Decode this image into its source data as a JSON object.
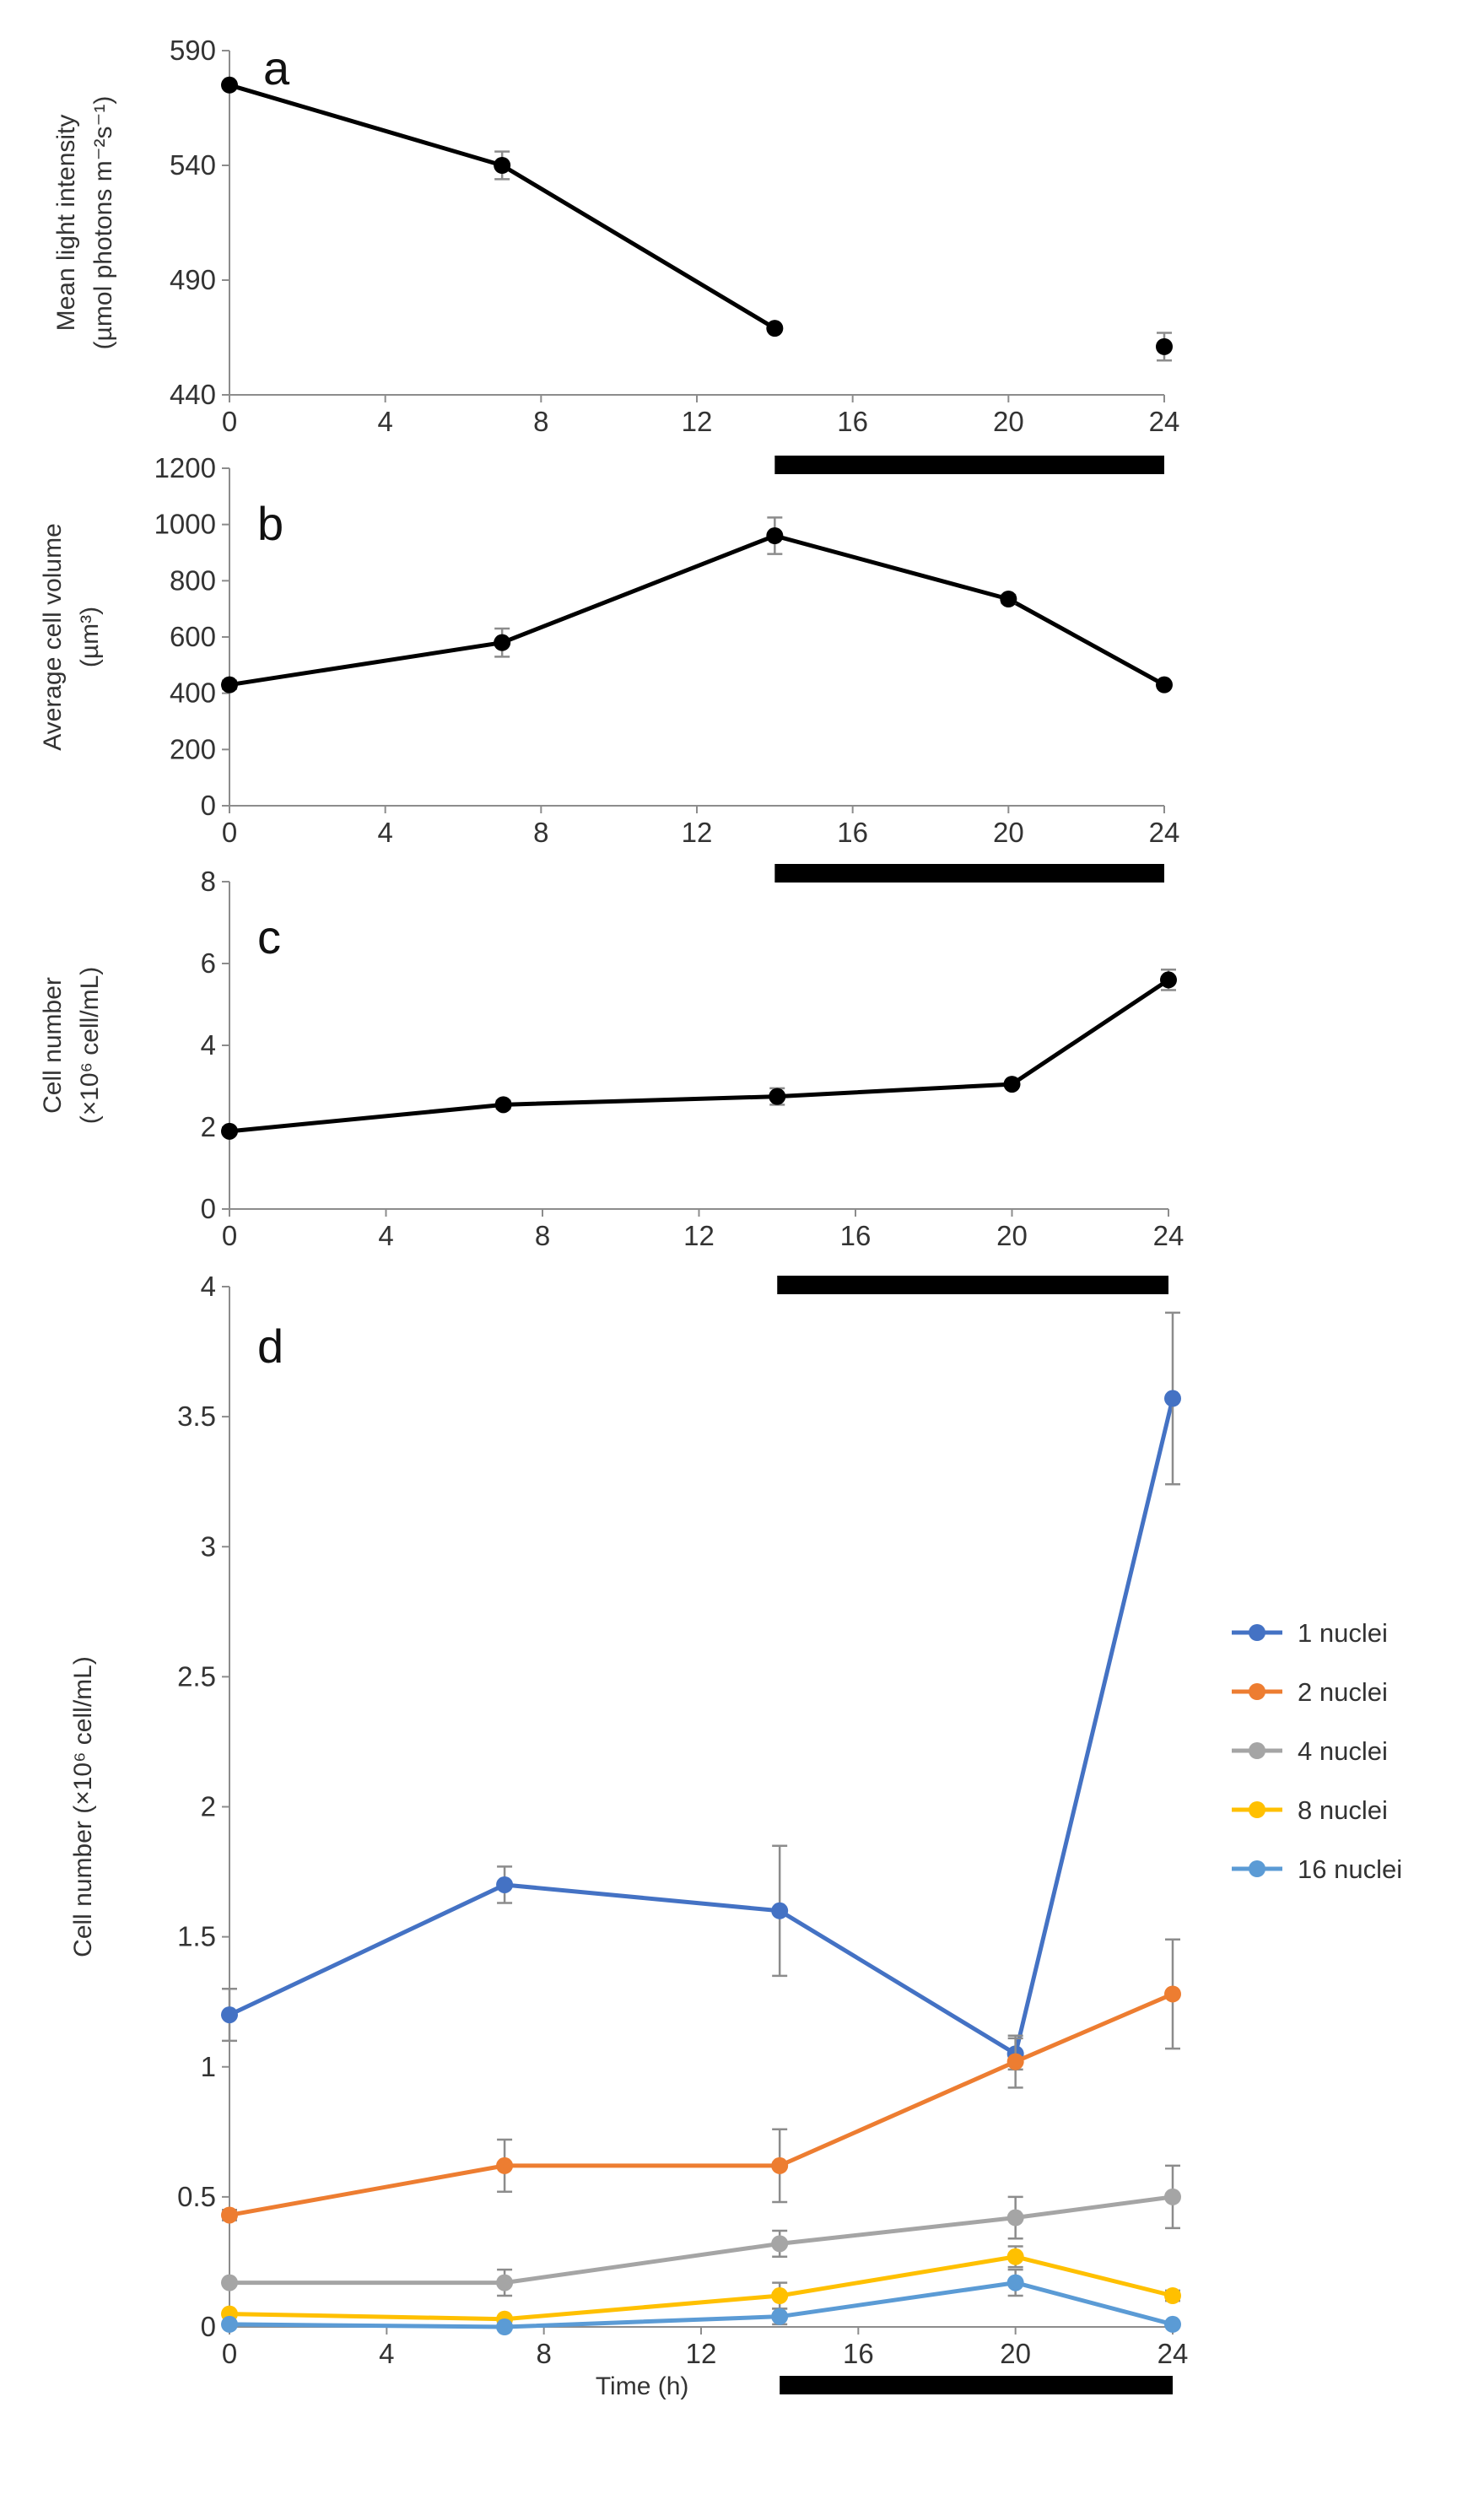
{
  "colors": {
    "black": "#000000",
    "axis": "#8c8c8c",
    "error_bar": "#8c8c8c",
    "s1": "#4472C4",
    "s2": "#ED7D31",
    "s4": "#A5A5A5",
    "s8": "#FFC000",
    "s16": "#5B9BD5"
  },
  "chart_data": [
    {
      "panel": "a",
      "type": "line",
      "x": [
        0,
        7,
        14,
        24
      ],
      "values": [
        575,
        540,
        469,
        461
      ],
      "errors": [
        0,
        6,
        0,
        6
      ],
      "segments": [
        [
          0,
          1,
          2
        ]
      ],
      "ylabel_line1": "Mean light intensity",
      "ylabel_line2": "(µmol photons m⁻²s⁻¹)",
      "ylim": [
        440,
        590
      ],
      "yticks": [
        "440",
        "490",
        "540",
        "590"
      ],
      "xlim": [
        0,
        24
      ],
      "xticks": [
        "0",
        "4",
        "8",
        "12",
        "16",
        "20",
        "24"
      ],
      "dark_period": [
        14,
        24
      ]
    },
    {
      "panel": "b",
      "type": "line",
      "x": [
        0,
        7,
        14,
        20,
        24
      ],
      "values": [
        430,
        580,
        960,
        735,
        430
      ],
      "errors": [
        15,
        50,
        65,
        15,
        10
      ],
      "segments": [
        [
          0,
          1,
          2,
          3,
          4
        ]
      ],
      "ylabel_line1": "Average cell volume",
      "ylabel_line2": "(µm³)",
      "ylim": [
        0,
        1200
      ],
      "yticks": [
        "0",
        "200",
        "400",
        "600",
        "800",
        "1000",
        "1200"
      ],
      "xlim": [
        0,
        24
      ],
      "xticks": [
        "0",
        "4",
        "8",
        "12",
        "16",
        "20",
        "24"
      ],
      "dark_period": [
        14,
        24
      ]
    },
    {
      "panel": "c",
      "type": "line",
      "x": [
        0,
        7,
        14,
        20,
        24
      ],
      "values": [
        1.9,
        2.55,
        2.75,
        3.05,
        5.6
      ],
      "errors": [
        0.05,
        0.1,
        0.2,
        0.05,
        0.25
      ],
      "segments": [
        [
          0,
          1,
          2,
          3,
          4
        ]
      ],
      "ylabel_line1": "Cell number",
      "ylabel_line2": "(×10⁶ cell/mL)",
      "ylim": [
        0,
        8
      ],
      "yticks": [
        "0",
        "2",
        "4",
        "6",
        "8"
      ],
      "xlim": [
        0,
        24
      ],
      "xticks": [
        "0",
        "4",
        "8",
        "12",
        "16",
        "20",
        "24"
      ],
      "dark_period": [
        14,
        24
      ]
    },
    {
      "panel": "d",
      "type": "line",
      "x": [
        0,
        7,
        14,
        20,
        24
      ],
      "series": [
        {
          "name": "1 nuclei",
          "color_key": "s1",
          "values": [
            1.2,
            1.7,
            1.6,
            1.05,
            3.57
          ],
          "errors": [
            0.1,
            0.07,
            0.25,
            0.06,
            0.33
          ]
        },
        {
          "name": "2 nuclei",
          "color_key": "s2",
          "values": [
            0.43,
            0.62,
            0.62,
            1.02,
            1.28
          ],
          "errors": [
            0.02,
            0.1,
            0.14,
            0.1,
            0.21
          ]
        },
        {
          "name": "4 nuclei",
          "color_key": "s4",
          "values": [
            0.17,
            0.17,
            0.32,
            0.42,
            0.5
          ],
          "errors": [
            0.01,
            0.05,
            0.05,
            0.08,
            0.12
          ]
        },
        {
          "name": "8 nuclei",
          "color_key": "s8",
          "values": [
            0.05,
            0.03,
            0.12,
            0.27,
            0.12
          ],
          "errors": [
            0.01,
            0.01,
            0.05,
            0.04,
            0.02
          ]
        },
        {
          "name": "16 nuclei",
          "color_key": "s16",
          "values": [
            0.01,
            0.0,
            0.04,
            0.17,
            0.01
          ],
          "errors": [
            0.0,
            0.0,
            0.03,
            0.05,
            0.0
          ]
        }
      ],
      "ylabel_line1": "Cell number (×10⁶ cell/mL)",
      "ylabel_line2": "",
      "ylim": [
        0,
        4
      ],
      "yticks": [
        "0",
        "0.5",
        "1",
        "1.5",
        "2",
        "2.5",
        "3",
        "3.5",
        "4"
      ],
      "xlim": [
        0,
        24
      ],
      "xticks": [
        "0",
        "4",
        "8",
        "12",
        "16",
        "20",
        "24"
      ],
      "xlabel": "Time (h)",
      "dark_period": [
        14,
        24
      ],
      "legend_position": "right"
    }
  ]
}
